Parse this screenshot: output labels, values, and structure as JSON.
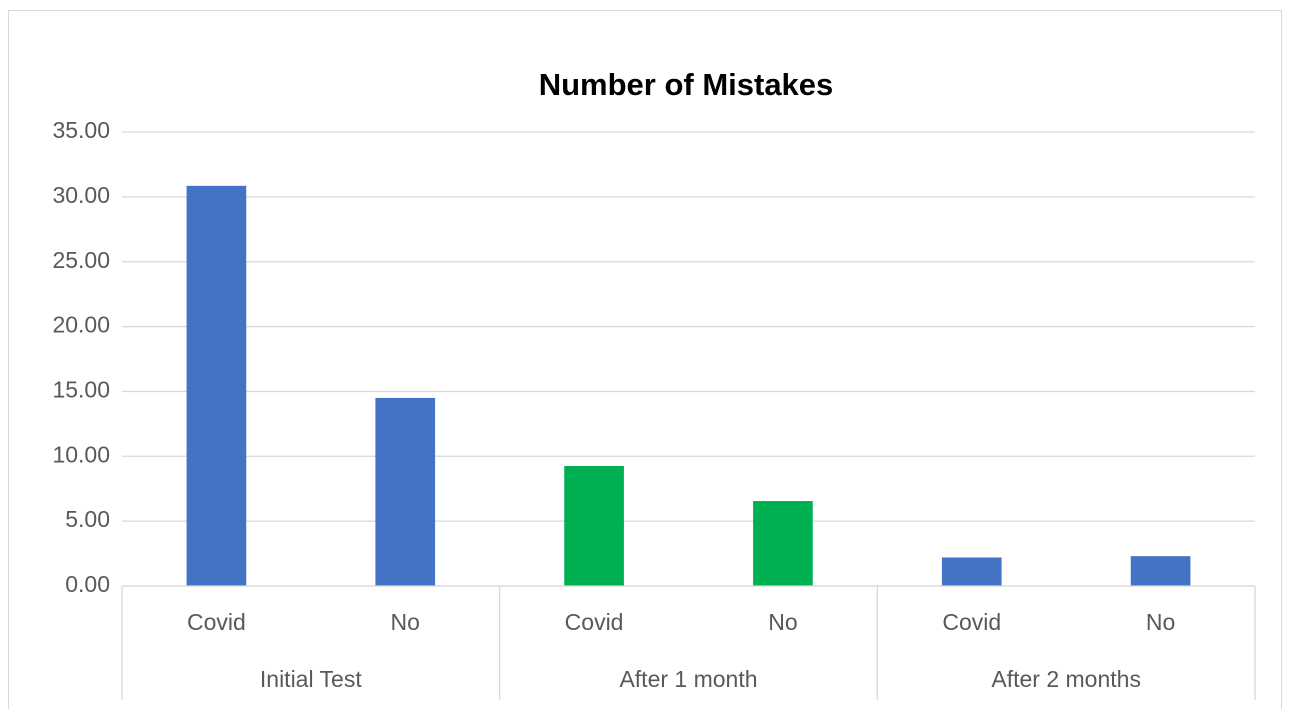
{
  "chart_data": {
    "type": "bar",
    "title": "Number of Mistakes",
    "categories": [
      "Covid",
      "No",
      "Covid",
      "No",
      "Covid",
      "No"
    ],
    "groups": [
      "Initial Test",
      "After 1 month",
      "After 2 months"
    ],
    "values": [
      30.85,
      14.5,
      9.25,
      6.55,
      2.2,
      2.3
    ],
    "colors": [
      "#4472c4",
      "#4472c4",
      "#00b050",
      "#00b050",
      "#4472c4",
      "#4472c4"
    ],
    "ylim": [
      0,
      35
    ],
    "yticks": [
      {
        "value": 0,
        "label": "0.00"
      },
      {
        "value": 5,
        "label": "5.00"
      },
      {
        "value": 10,
        "label": "10.00"
      },
      {
        "value": 15,
        "label": "15.00"
      },
      {
        "value": 20,
        "label": "20.00"
      },
      {
        "value": 25,
        "label": "25.00"
      },
      {
        "value": 30,
        "label": "30.00"
      },
      {
        "value": 35,
        "label": "35.00"
      }
    ],
    "grid": true
  }
}
